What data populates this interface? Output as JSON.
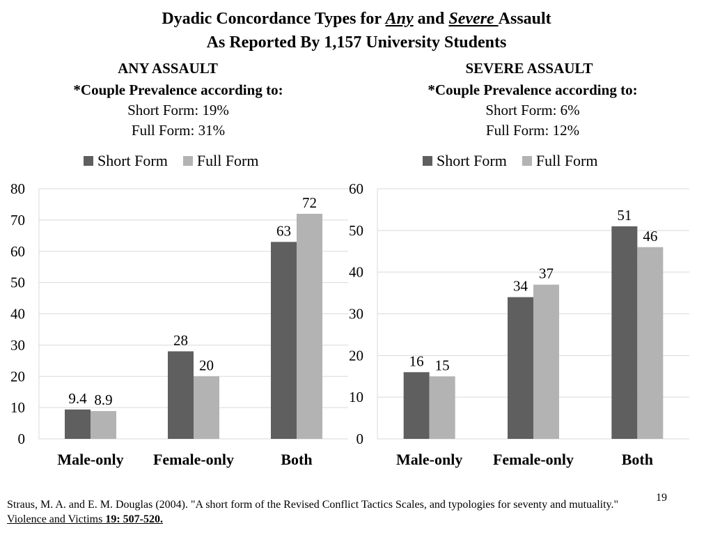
{
  "title": {
    "part1": "Dyadic Concordance Types for ",
    "any": "Any",
    "and": " and ",
    "severe": "Severe ",
    "assault": "Assault",
    "line2": "As Reported By 1,157 University Students"
  },
  "panels": [
    {
      "heading": "ANY ASSAULT",
      "prevalence_label": "*Couple Prevalence according to:",
      "short_line": "Short Form: 19%",
      "full_line": "Full Form: 31%"
    },
    {
      "heading": "SEVERE ASSAULT",
      "prevalence_label": "*Couple Prevalence according to:",
      "short_line": "Short Form: 6%",
      "full_line": "Full Form: 12%"
    }
  ],
  "colors": {
    "short": "#5f5f5f",
    "full": "#b3b3b3",
    "grid": "#d9d9d9"
  },
  "chart_data": [
    {
      "type": "bar",
      "title": "",
      "categories": [
        "Male-only",
        "Female-only",
        "Both"
      ],
      "series": [
        {
          "name": "Short Form",
          "values": [
            9.4,
            28,
            63
          ],
          "labels": [
            "9.4",
            "28",
            "63"
          ]
        },
        {
          "name": "Full Form",
          "values": [
            8.9,
            20,
            72
          ],
          "labels": [
            "8.9",
            "20",
            "72"
          ]
        }
      ],
      "ylim": [
        0,
        80
      ],
      "yticks": [
        0,
        10,
        20,
        30,
        40,
        50,
        60,
        70,
        80
      ],
      "grid": true,
      "legend": "top"
    },
    {
      "type": "bar",
      "title": "",
      "categories": [
        "Male-only",
        "Female-only",
        "Both"
      ],
      "series": [
        {
          "name": "Short Form",
          "values": [
            16,
            34,
            51
          ],
          "labels": [
            "16",
            "34",
            "51"
          ]
        },
        {
          "name": "Full Form",
          "values": [
            15,
            37,
            46
          ],
          "labels": [
            "15",
            "37",
            "46"
          ]
        }
      ],
      "ylim": [
        0,
        60
      ],
      "yticks": [
        0,
        10,
        20,
        30,
        40,
        50,
        60
      ],
      "grid": true,
      "legend": "top"
    }
  ],
  "citation": {
    "text": "Straus, M. A. and E. M. Douglas (2004). \"A short form of the Revised Conflict Tactics Scales, and typologies for seventy and mutuality.\" ",
    "journal": "Violence and Victims",
    "volume": " 19: 507-520."
  },
  "page_number": "19"
}
